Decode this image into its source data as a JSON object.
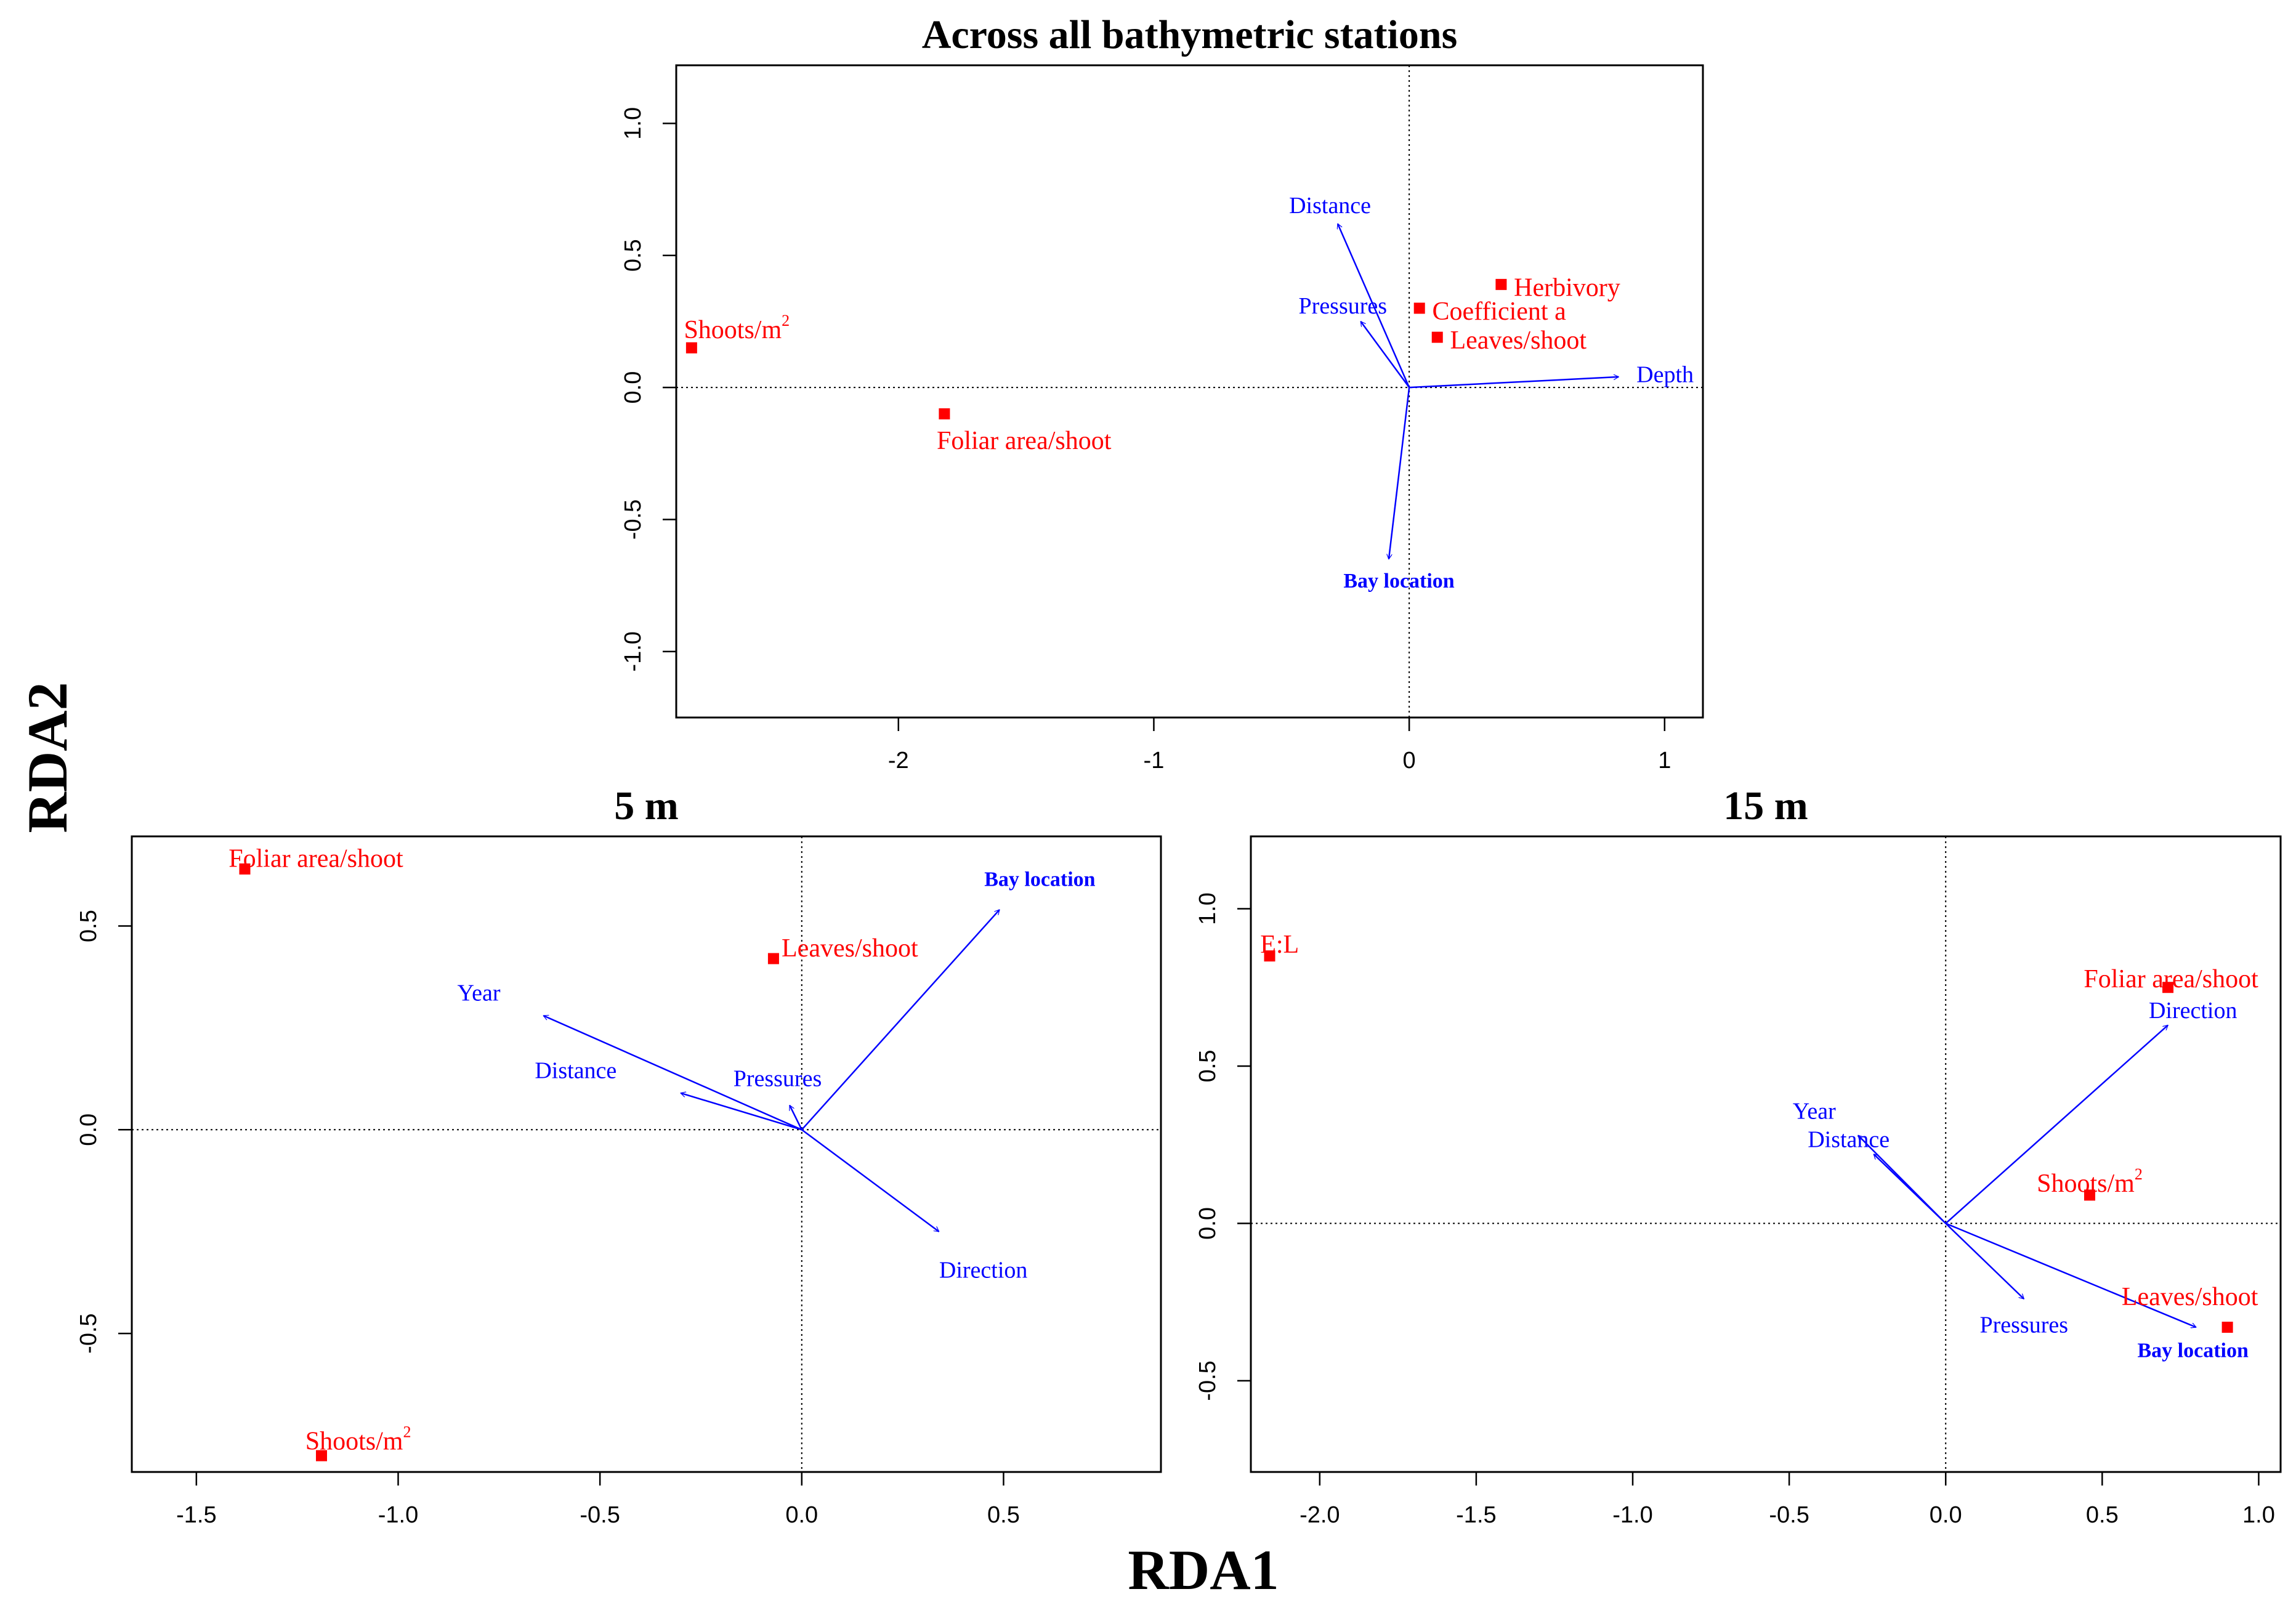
{
  "figure": {
    "shared_ylabel": "RDA2",
    "shared_xlabel": "RDA1"
  },
  "colors": {
    "response": "#ff0000",
    "explanatory": "#0000ff",
    "axis": "#000000"
  },
  "chart_data": [
    {
      "type": "scatter",
      "title": "Across all bathymetric stations",
      "xlabel": "RDA1",
      "ylabel": "RDA2",
      "xlim": [
        -2.87,
        1.15
      ],
      "ylim": [
        -1.25,
        1.22
      ],
      "xticks": [
        -2,
        -1,
        0,
        1
      ],
      "xtick_labels": [
        "-2",
        "-1",
        "0",
        "1"
      ],
      "yticks": [
        -1.0,
        -0.5,
        0.0,
        0.5,
        1.0
      ],
      "ytick_labels": [
        "-1.0",
        "-0.5",
        "0.0",
        "0.5",
        "1.0"
      ],
      "points": [
        {
          "label": "Shoots/m",
          "sup": "2",
          "x": -2.81,
          "y": 0.15,
          "lx": -2.84,
          "ly": 0.21,
          "anchor": "start"
        },
        {
          "label": "Foliar area/shoot",
          "x": -1.82,
          "y": -0.1,
          "lx": -1.85,
          "ly": -0.21,
          "anchor": "start"
        },
        {
          "label": "Herbivory",
          "x": 0.36,
          "y": 0.39,
          "lx": 0.41,
          "ly": 0.37,
          "anchor": "start"
        },
        {
          "label": "Coefficient a",
          "x": 0.04,
          "y": 0.3,
          "lx": 0.09,
          "ly": 0.28,
          "anchor": "start"
        },
        {
          "label": "Leaves/shoot",
          "x": 0.11,
          "y": 0.19,
          "lx": 0.16,
          "ly": 0.17,
          "anchor": "start"
        }
      ],
      "vectors": [
        {
          "label": "Distance",
          "x": -0.28,
          "y": 0.62,
          "lx": -0.31,
          "ly": 0.68,
          "anchor": "middle",
          "bold": false
        },
        {
          "label": "Pressures",
          "x": -0.19,
          "y": 0.25,
          "lx": -0.26,
          "ly": 0.3,
          "anchor": "middle",
          "bold": false
        },
        {
          "label": "Depth",
          "x": 0.82,
          "y": 0.04,
          "lx": 0.89,
          "ly": 0.04,
          "anchor": "start",
          "bold": false
        },
        {
          "label": "Bay location",
          "x": -0.08,
          "y": -0.65,
          "lx": -0.04,
          "ly": -0.74,
          "anchor": "middle",
          "bold": true
        }
      ]
    },
    {
      "type": "scatter",
      "title": "5 m",
      "xlabel": "RDA1",
      "ylabel": "RDA2",
      "xlim": [
        -1.66,
        0.89
      ],
      "ylim": [
        -0.84,
        0.72
      ],
      "xticks": [
        -1.5,
        -1.0,
        -0.5,
        0.0,
        0.5
      ],
      "xtick_labels": [
        "-1.5",
        "-1.0",
        "-0.5",
        "0.0",
        "0.5"
      ],
      "yticks": [
        -0.5,
        0.0,
        0.5
      ],
      "ytick_labels": [
        "-0.5",
        "0.0",
        "0.5"
      ],
      "points": [
        {
          "label": "Foliar area/shoot",
          "x": -1.38,
          "y": 0.64,
          "lx": -1.42,
          "ly": 0.66,
          "anchor": "start"
        },
        {
          "label": "Leaves/shoot",
          "x": -0.07,
          "y": 0.42,
          "lx": -0.05,
          "ly": 0.44,
          "anchor": "start"
        },
        {
          "label": "Shoots/m",
          "sup": "2",
          "x": -1.19,
          "y": -0.8,
          "lx": -1.23,
          "ly": -0.77,
          "anchor": "start"
        }
      ],
      "vectors": [
        {
          "label": "Year",
          "x": -0.64,
          "y": 0.28,
          "lx": -0.8,
          "ly": 0.33,
          "anchor": "middle",
          "bold": false
        },
        {
          "label": "Distance",
          "x": -0.3,
          "y": 0.09,
          "lx": -0.56,
          "ly": 0.14,
          "anchor": "middle",
          "bold": false
        },
        {
          "label": "Pressures",
          "x": -0.03,
          "y": 0.06,
          "lx": -0.06,
          "ly": 0.12,
          "anchor": "middle",
          "bold": false
        },
        {
          "label": "Bay location",
          "x": 0.49,
          "y": 0.54,
          "lx": 0.59,
          "ly": 0.61,
          "anchor": "middle",
          "bold": true
        },
        {
          "label": "Direction",
          "x": 0.34,
          "y": -0.25,
          "lx": 0.45,
          "ly": -0.35,
          "anchor": "middle",
          "bold": false
        }
      ]
    },
    {
      "type": "scatter",
      "title": "15 m",
      "xlabel": "RDA1",
      "ylabel": "RDA2",
      "xlim": [
        -2.22,
        1.07
      ],
      "ylim": [
        -0.79,
        1.23
      ],
      "xticks": [
        -2.0,
        -1.5,
        -1.0,
        -0.5,
        0.0,
        0.5,
        1.0
      ],
      "xtick_labels": [
        "-2.0",
        "-1.5",
        "-1.0",
        "-0.5",
        "0.0",
        "0.5",
        "1.0"
      ],
      "yticks": [
        -0.5,
        0.0,
        0.5,
        1.0
      ],
      "ytick_labels": [
        "-0.5",
        "0.0",
        "0.5",
        "1.0"
      ],
      "points": [
        {
          "label": "E:L",
          "x": -2.16,
          "y": 0.85,
          "lx": -2.19,
          "ly": 0.88,
          "anchor": "start"
        },
        {
          "label": "Foliar area/shoot",
          "x": 0.71,
          "y": 0.75,
          "lx": 0.72,
          "ly": 0.77,
          "anchor": "middle"
        },
        {
          "label": "Shoots/m",
          "sup": "2",
          "x": 0.46,
          "y": 0.09,
          "lx": 0.46,
          "ly": 0.12,
          "anchor": "middle"
        },
        {
          "label": "Leaves/shoot",
          "x": 0.9,
          "y": -0.33,
          "lx": 0.78,
          "ly": -0.24,
          "anchor": "middle"
        }
      ],
      "vectors": [
        {
          "label": "Year",
          "x": -0.28,
          "y": 0.28,
          "lx": -0.42,
          "ly": 0.35,
          "anchor": "middle",
          "bold": false
        },
        {
          "label": "Distance",
          "x": -0.23,
          "y": 0.22,
          "lx": -0.31,
          "ly": 0.26,
          "anchor": "middle",
          "bold": false
        },
        {
          "label": "Direction",
          "x": 0.71,
          "y": 0.63,
          "lx": 0.79,
          "ly": 0.67,
          "anchor": "middle",
          "bold": false
        },
        {
          "label": "Pressures",
          "x": 0.25,
          "y": -0.24,
          "lx": 0.25,
          "ly": -0.33,
          "anchor": "middle",
          "bold": false
        },
        {
          "label": "Bay location",
          "x": 0.8,
          "y": -0.33,
          "lx": 0.79,
          "ly": -0.41,
          "anchor": "middle",
          "bold": true
        }
      ]
    }
  ]
}
